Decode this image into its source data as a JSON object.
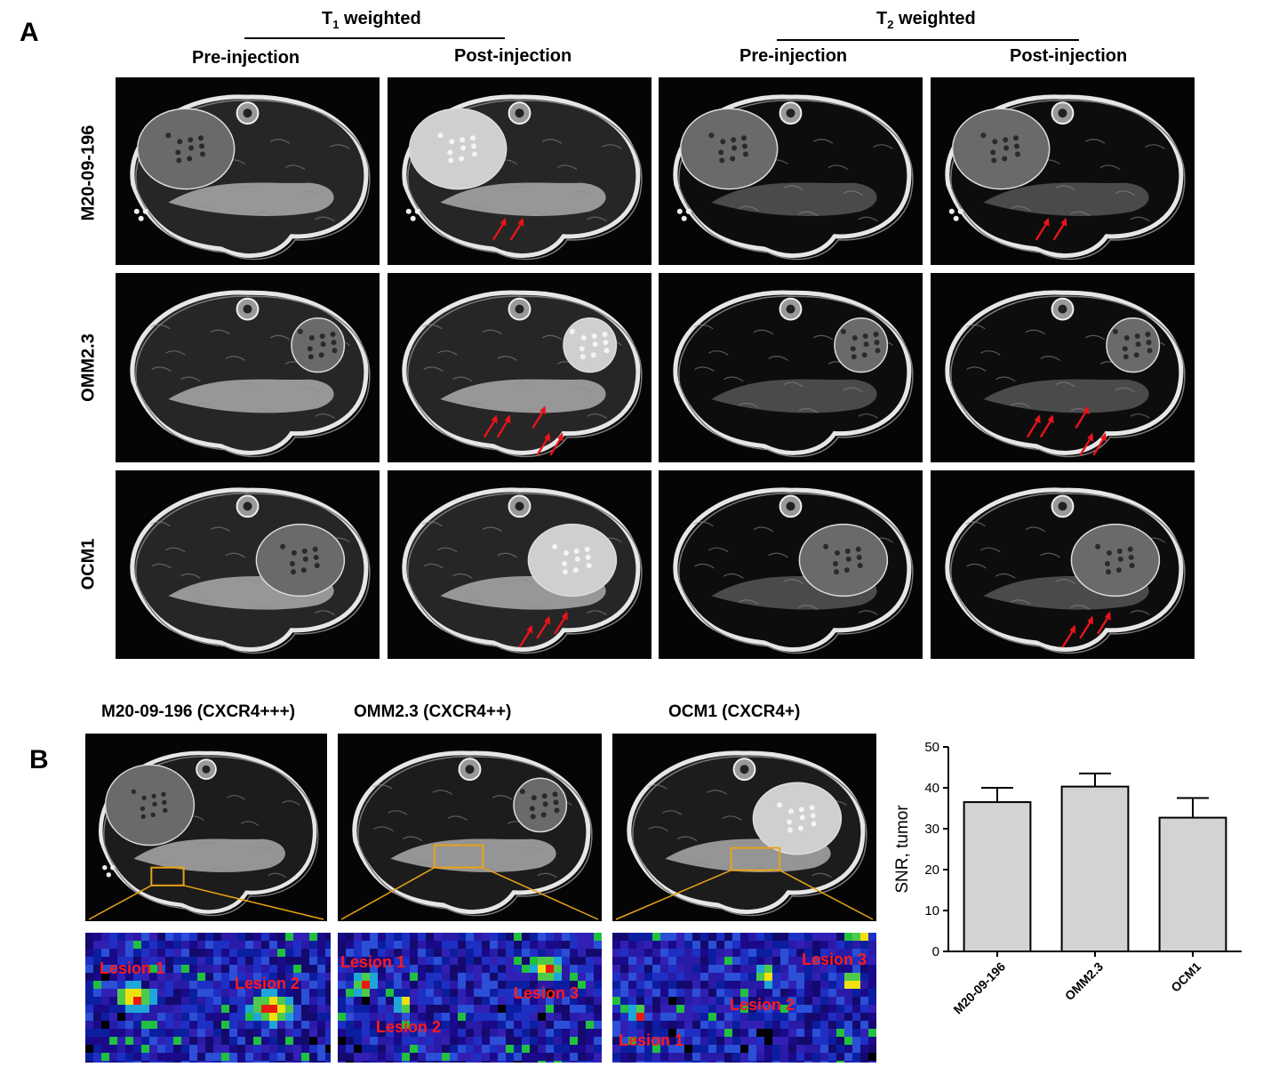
{
  "panel_a": {
    "letter": "A",
    "group_t1": "T",
    "group_t1_sub": "1",
    "group_t1_suffix": " weighted",
    "group_t2": "T",
    "group_t2_sub": "2",
    "group_t2_suffix": " weighted",
    "col_pre": "Pre-injection",
    "col_post": "Post-injection",
    "rows": [
      "M20-09-196",
      "OMM2.3",
      "OCM1"
    ]
  },
  "panel_b": {
    "letter": "B",
    "titles": [
      "M20-09-196 (CXCR4+++)",
      "OMM2.3 (CXCR4++)",
      "OCM1 (CXCR4+)"
    ],
    "lesions_1": [
      "Lesion 1",
      "Lesion 2"
    ],
    "lesions_2": [
      "Lesion 1",
      "Lesion 2",
      "Lesion 3"
    ],
    "lesions_3": [
      "Lesion 1",
      "Lesion 2",
      "Lesion 3"
    ]
  },
  "colors": {
    "arrow": "#e8141b",
    "roi_box": "#e8a317",
    "bar_fill": "#d3d3d3",
    "lesion_text": "#ff1a1a"
  },
  "chart_data": {
    "type": "bar",
    "categories": [
      "M20-09-196",
      "OMM2.3",
      "OCM1"
    ],
    "values": [
      36.5,
      40.3,
      32.7
    ],
    "errors": [
      3.5,
      3.2,
      4.8
    ],
    "ylabel": "SNR, tumor",
    "xlabel": "",
    "ylim": [
      0,
      50
    ],
    "yticks": [
      0,
      10,
      20,
      30,
      40,
      50
    ],
    "grid": false
  }
}
